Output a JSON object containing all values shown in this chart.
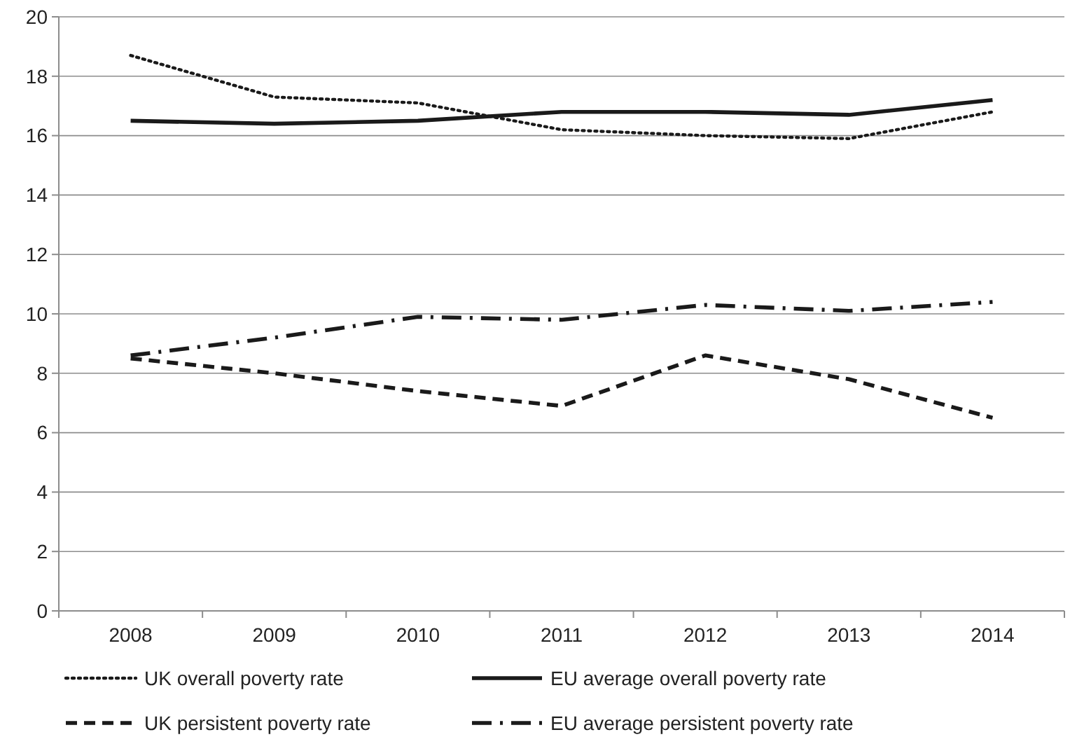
{
  "chart_data": {
    "type": "line",
    "categories": [
      "2008",
      "2009",
      "2010",
      "2011",
      "2012",
      "2013",
      "2014"
    ],
    "series": [
      {
        "name": "UK overall poverty rate",
        "color": "#1a1a1a",
        "line_style": "dotted",
        "values": [
          18.7,
          17.3,
          17.1,
          16.2,
          16.0,
          15.9,
          16.8
        ]
      },
      {
        "name": "EU average overall poverty rate",
        "color": "#1a1a1a",
        "line_style": "solid",
        "values": [
          16.5,
          16.4,
          16.5,
          16.8,
          16.8,
          16.7,
          17.2
        ]
      },
      {
        "name": "UK persistent poverty rate",
        "color": "#1a1a1a",
        "line_style": "dashed",
        "values": [
          8.5,
          8.0,
          7.4,
          6.9,
          8.6,
          7.8,
          6.5
        ]
      },
      {
        "name": "EU average persistent poverty rate",
        "color": "#1a1a1a",
        "line_style": "dashdot",
        "values": [
          8.6,
          9.2,
          9.9,
          9.8,
          10.3,
          10.1,
          10.4
        ]
      }
    ],
    "ylim": [
      0,
      20
    ],
    "yticks": [
      0,
      2,
      4,
      6,
      8,
      10,
      12,
      14,
      16,
      18,
      20
    ],
    "grid": "y",
    "legend": "bottom"
  }
}
